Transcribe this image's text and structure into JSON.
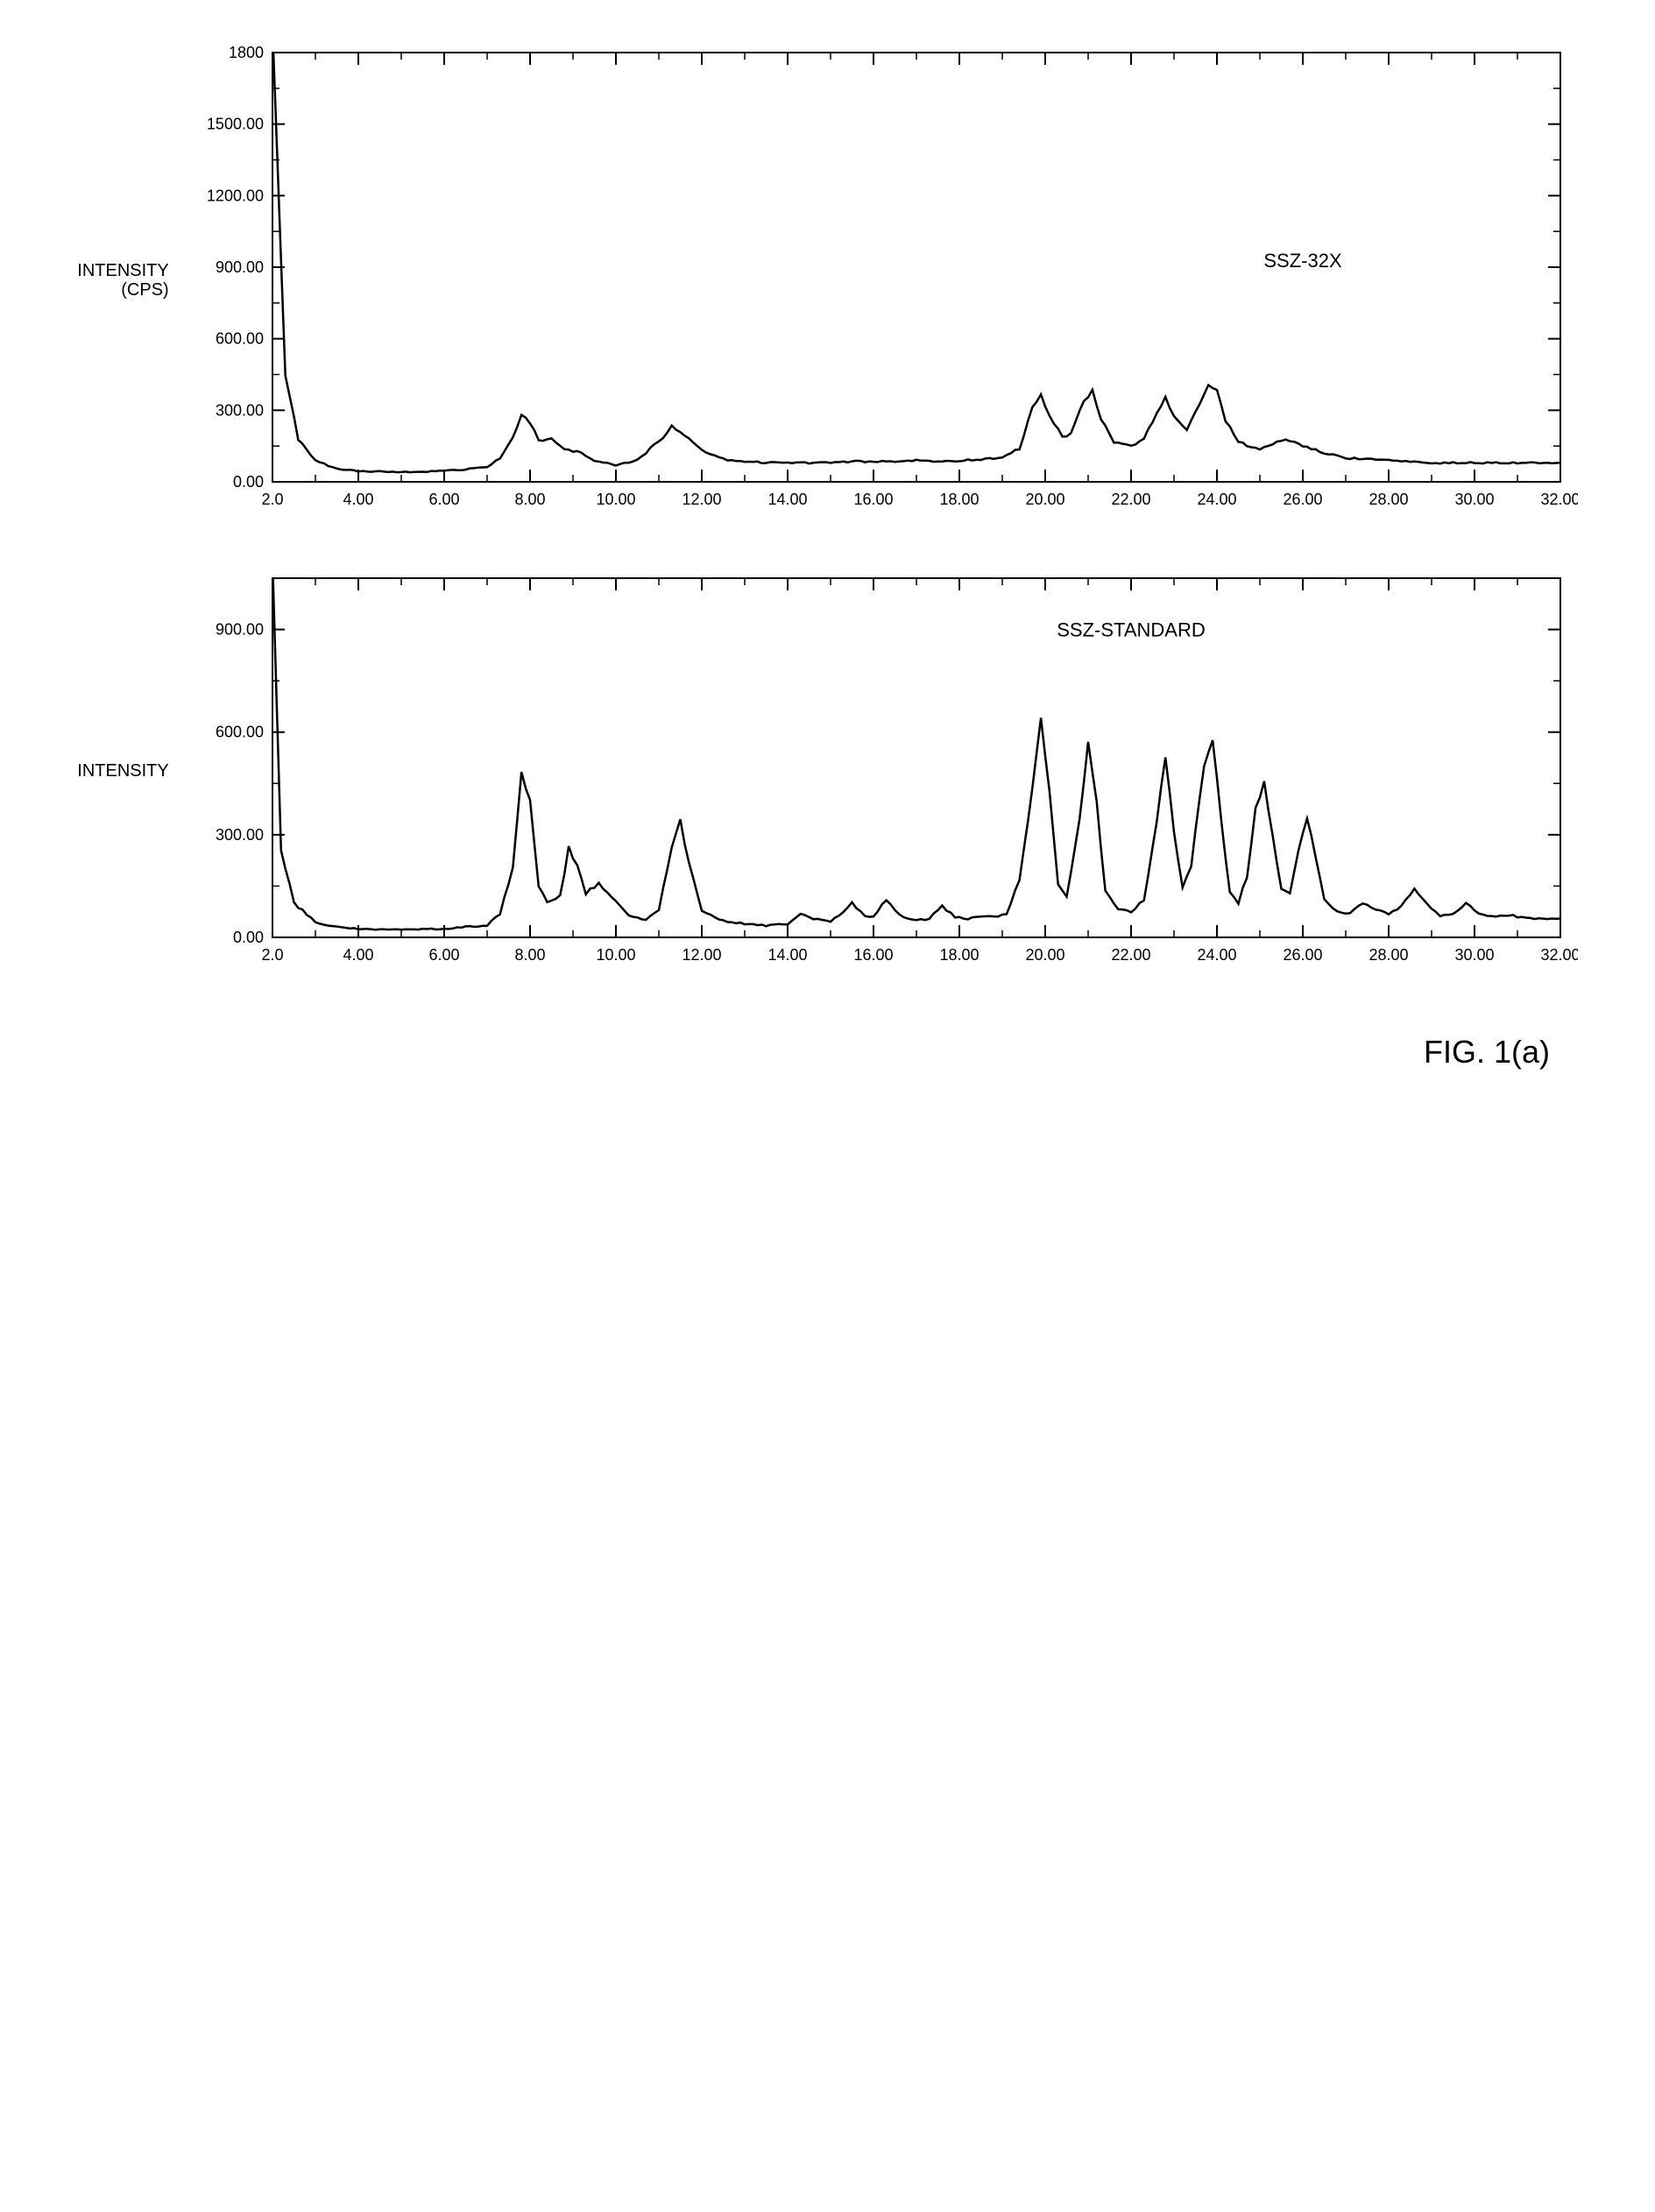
{
  "figure_label": "FIG. 1(a)",
  "colors": {
    "background": "#ffffff",
    "axis": "#000000",
    "trace": "#000000",
    "text": "#000000"
  },
  "chart_top": {
    "type": "line",
    "title": "SSZ-32X",
    "ylabel_line1": "INTENSITY",
    "ylabel_line2": "(CPS)",
    "xlim": [
      2.0,
      32.0
    ],
    "ylim": [
      0,
      1800
    ],
    "xticks": [
      "2.0",
      "4.00",
      "6.00",
      "8.00",
      "10.00",
      "12.00",
      "14.00",
      "16.00",
      "18.00",
      "20.00",
      "22.00",
      "24.00",
      "26.00",
      "28.00",
      "30.00",
      "32.00"
    ],
    "xtick_vals": [
      2,
      4,
      6,
      8,
      10,
      12,
      14,
      16,
      18,
      20,
      22,
      24,
      26,
      28,
      30,
      32
    ],
    "yticks": [
      "0.00",
      "300.00",
      "600.00",
      "900.00",
      "1200.00",
      "1500.00",
      "1800"
    ],
    "ytick_vals": [
      0,
      300,
      600,
      900,
      1200,
      1500,
      1800
    ],
    "tick_fontsize": 18,
    "title_fontsize": 22,
    "label_fontsize": 20,
    "line_width": 2.5,
    "data": [
      [
        2.0,
        1900
      ],
      [
        2.3,
        450
      ],
      [
        2.6,
        180
      ],
      [
        3.0,
        90
      ],
      [
        3.5,
        55
      ],
      [
        4.0,
        45
      ],
      [
        5.0,
        40
      ],
      [
        6.0,
        45
      ],
      [
        7.0,
        60
      ],
      [
        7.3,
        100
      ],
      [
        7.6,
        190
      ],
      [
        7.8,
        280
      ],
      [
        8.0,
        250
      ],
      [
        8.2,
        170
      ],
      [
        8.5,
        180
      ],
      [
        8.8,
        140
      ],
      [
        9.2,
        120
      ],
      [
        9.5,
        90
      ],
      [
        10.0,
        70
      ],
      [
        10.5,
        90
      ],
      [
        11.0,
        170
      ],
      [
        11.3,
        230
      ],
      [
        11.6,
        200
      ],
      [
        12.0,
        130
      ],
      [
        12.5,
        95
      ],
      [
        13.0,
        85
      ],
      [
        13.5,
        80
      ],
      [
        14.0,
        80
      ],
      [
        14.5,
        80
      ],
      [
        15.0,
        80
      ],
      [
        15.5,
        85
      ],
      [
        16.0,
        85
      ],
      [
        16.5,
        85
      ],
      [
        17.0,
        90
      ],
      [
        17.5,
        85
      ],
      [
        18.0,
        90
      ],
      [
        18.5,
        95
      ],
      [
        19.0,
        100
      ],
      [
        19.4,
        140
      ],
      [
        19.7,
        310
      ],
      [
        19.9,
        370
      ],
      [
        20.1,
        270
      ],
      [
        20.4,
        190
      ],
      [
        20.6,
        200
      ],
      [
        20.9,
        340
      ],
      [
        21.1,
        380
      ],
      [
        21.3,
        260
      ],
      [
        21.6,
        170
      ],
      [
        22.0,
        150
      ],
      [
        22.3,
        180
      ],
      [
        22.6,
        290
      ],
      [
        22.8,
        350
      ],
      [
        23.0,
        270
      ],
      [
        23.3,
        220
      ],
      [
        23.5,
        290
      ],
      [
        23.8,
        400
      ],
      [
        24.0,
        380
      ],
      [
        24.2,
        260
      ],
      [
        24.5,
        170
      ],
      [
        24.8,
        140
      ],
      [
        25.0,
        140
      ],
      [
        25.3,
        160
      ],
      [
        25.6,
        180
      ],
      [
        26.0,
        150
      ],
      [
        26.5,
        120
      ],
      [
        27.0,
        100
      ],
      [
        27.5,
        95
      ],
      [
        28.0,
        90
      ],
      [
        28.5,
        85
      ],
      [
        29.0,
        80
      ],
      [
        29.5,
        80
      ],
      [
        30.0,
        80
      ],
      [
        30.5,
        80
      ],
      [
        31.0,
        80
      ],
      [
        31.5,
        80
      ],
      [
        32.0,
        80
      ]
    ]
  },
  "chart_bottom": {
    "type": "line",
    "title": "SSZ-STANDARD",
    "ylabel_line1": "INTENSITY",
    "ylabel_line2": "",
    "xlim": [
      2.0,
      32.0
    ],
    "ylim": [
      0,
      1050
    ],
    "xticks": [
      "2.0",
      "4.00",
      "6.00",
      "8.00",
      "10.00",
      "12.00",
      "14.00",
      "16.00",
      "18.00",
      "20.00",
      "22.00",
      "24.00",
      "26.00",
      "28.00",
      "30.00",
      "32.00"
    ],
    "xtick_vals": [
      2,
      4,
      6,
      8,
      10,
      12,
      14,
      16,
      18,
      20,
      22,
      24,
      26,
      28,
      30,
      32
    ],
    "yticks": [
      "0.00",
      "300.00",
      "600.00",
      "900.00"
    ],
    "ytick_vals": [
      0,
      300,
      600,
      900
    ],
    "tick_fontsize": 18,
    "title_fontsize": 22,
    "label_fontsize": 20,
    "line_width": 2.5,
    "data": [
      [
        2.0,
        1100
      ],
      [
        2.2,
        260
      ],
      [
        2.5,
        100
      ],
      [
        3.0,
        45
      ],
      [
        3.5,
        30
      ],
      [
        4.0,
        25
      ],
      [
        5.0,
        22
      ],
      [
        6.0,
        25
      ],
      [
        7.0,
        35
      ],
      [
        7.3,
        70
      ],
      [
        7.6,
        200
      ],
      [
        7.8,
        480
      ],
      [
        8.0,
        400
      ],
      [
        8.2,
        150
      ],
      [
        8.4,
        100
      ],
      [
        8.7,
        120
      ],
      [
        8.9,
        260
      ],
      [
        9.1,
        210
      ],
      [
        9.3,
        130
      ],
      [
        9.6,
        160
      ],
      [
        9.9,
        120
      ],
      [
        10.3,
        65
      ],
      [
        10.7,
        50
      ],
      [
        11.0,
        80
      ],
      [
        11.3,
        260
      ],
      [
        11.5,
        340
      ],
      [
        11.7,
        220
      ],
      [
        12.0,
        80
      ],
      [
        12.4,
        50
      ],
      [
        13.0,
        40
      ],
      [
        13.5,
        35
      ],
      [
        14.0,
        40
      ],
      [
        14.3,
        70
      ],
      [
        14.6,
        55
      ],
      [
        15.0,
        45
      ],
      [
        15.3,
        75
      ],
      [
        15.5,
        100
      ],
      [
        15.8,
        60
      ],
      [
        16.0,
        60
      ],
      [
        16.3,
        110
      ],
      [
        16.6,
        65
      ],
      [
        17.0,
        50
      ],
      [
        17.3,
        55
      ],
      [
        17.6,
        90
      ],
      [
        17.9,
        60
      ],
      [
        18.2,
        55
      ],
      [
        18.5,
        60
      ],
      [
        18.8,
        60
      ],
      [
        19.1,
        70
      ],
      [
        19.4,
        170
      ],
      [
        19.7,
        430
      ],
      [
        19.9,
        640
      ],
      [
        20.1,
        430
      ],
      [
        20.3,
        160
      ],
      [
        20.5,
        120
      ],
      [
        20.8,
        340
      ],
      [
        21.0,
        570
      ],
      [
        21.2,
        390
      ],
      [
        21.4,
        140
      ],
      [
        21.7,
        80
      ],
      [
        22.0,
        75
      ],
      [
        22.3,
        110
      ],
      [
        22.6,
        340
      ],
      [
        22.8,
        530
      ],
      [
        23.0,
        310
      ],
      [
        23.2,
        150
      ],
      [
        23.4,
        210
      ],
      [
        23.7,
        500
      ],
      [
        23.9,
        580
      ],
      [
        24.1,
        340
      ],
      [
        24.3,
        130
      ],
      [
        24.5,
        100
      ],
      [
        24.7,
        180
      ],
      [
        24.9,
        380
      ],
      [
        25.1,
        450
      ],
      [
        25.3,
        290
      ],
      [
        25.5,
        140
      ],
      [
        25.7,
        130
      ],
      [
        25.9,
        250
      ],
      [
        26.1,
        350
      ],
      [
        26.3,
        240
      ],
      [
        26.5,
        110
      ],
      [
        26.8,
        75
      ],
      [
        27.1,
        70
      ],
      [
        27.4,
        100
      ],
      [
        27.7,
        80
      ],
      [
        28.0,
        70
      ],
      [
        28.3,
        90
      ],
      [
        28.6,
        140
      ],
      [
        28.9,
        95
      ],
      [
        29.2,
        60
      ],
      [
        29.5,
        70
      ],
      [
        29.8,
        100
      ],
      [
        30.1,
        70
      ],
      [
        30.4,
        60
      ],
      [
        30.8,
        65
      ],
      [
        31.2,
        55
      ],
      [
        31.6,
        55
      ],
      [
        32.0,
        55
      ]
    ]
  }
}
